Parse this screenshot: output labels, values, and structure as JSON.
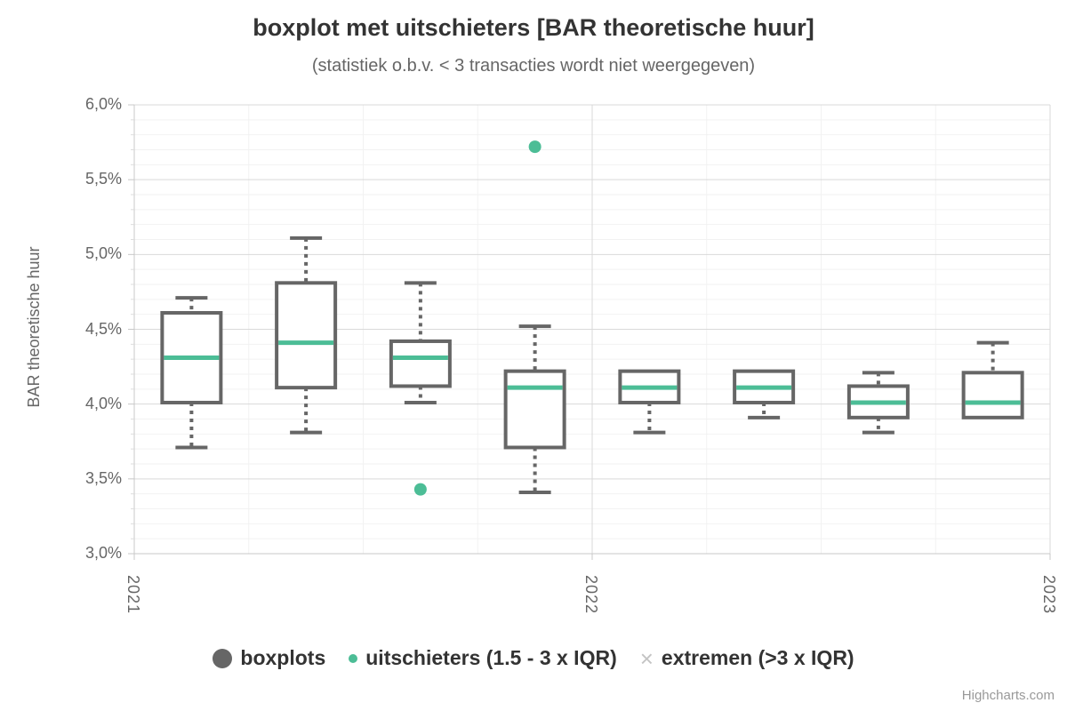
{
  "title": "boxplot met uitschieters [BAR theoretische huur]",
  "subtitle": "(statistiek o.b.v. < 3 transacties wordt niet weergegeven)",
  "credits": "Highcharts.com",
  "legend": {
    "items": [
      {
        "label": "boxplots",
        "marker": "large-circle",
        "color": "#666666"
      },
      {
        "label": "uitschieters (1.5 - 3 x IQR)",
        "marker": "small-dot",
        "color": "#4CBD96"
      },
      {
        "label": "extremen (>3 x IQR)",
        "marker": "cross",
        "marker_glyph": "×",
        "color": "#C4C4C4"
      }
    ]
  },
  "chart_data": {
    "type": "boxplot",
    "title": "boxplot met uitschieters [BAR theoretische huur]",
    "subtitle": "(statistiek o.b.v. < 3 transacties wordt niet weergegeven)",
    "ylabel": "BAR theoretische huur",
    "xlabel": "",
    "y_axis": {
      "min": 3.0,
      "max": 6.0,
      "major_step": 0.5,
      "minor_step": 0.1,
      "format": "percent-comma-decimal",
      "tick_labels": [
        "6,0%",
        "5,5%",
        "5,0%",
        "4,5%",
        "4,0%",
        "3,5%",
        "3,0%"
      ]
    },
    "x_axis": {
      "type": "datetime-years",
      "tick_labels": [
        "2021",
        "2022",
        "2023"
      ],
      "slots": 8,
      "slots_per_year": 4
    },
    "grid": {
      "major": true,
      "minor": true
    },
    "legend_position": "bottom-center",
    "series": [
      {
        "name": "boxplots",
        "type": "boxplot",
        "points": [
          {
            "slot": 0,
            "low": 3.71,
            "q1": 4.01,
            "median": 4.31,
            "q3": 4.61,
            "high": 4.71
          },
          {
            "slot": 1,
            "low": 3.81,
            "q1": 4.11,
            "median": 4.41,
            "q3": 4.81,
            "high": 5.11
          },
          {
            "slot": 2,
            "low": 4.01,
            "q1": 4.12,
            "median": 4.31,
            "q3": 4.42,
            "high": 4.81
          },
          {
            "slot": 3,
            "low": 3.41,
            "q1": 3.71,
            "median": 4.11,
            "q3": 4.22,
            "high": 4.52
          },
          {
            "slot": 4,
            "low": 3.81,
            "q1": 4.01,
            "median": 4.11,
            "q3": 4.22,
            "high": 4.22
          },
          {
            "slot": 5,
            "low": 3.91,
            "q1": 4.01,
            "median": 4.11,
            "q3": 4.22,
            "high": 4.22
          },
          {
            "slot": 6,
            "low": 3.81,
            "q1": 3.91,
            "median": 4.01,
            "q3": 4.12,
            "high": 4.21
          },
          {
            "slot": 7,
            "low": 3.91,
            "q1": 3.91,
            "median": 4.01,
            "q3": 4.21,
            "high": 4.41
          }
        ]
      },
      {
        "name": "uitschieters (1.5 - 3 x IQR)",
        "type": "scatter",
        "points": [
          {
            "slot": 2,
            "value": 3.43
          },
          {
            "slot": 3,
            "value": 5.72
          }
        ]
      },
      {
        "name": "extremen (>3 x IQR)",
        "type": "scatter",
        "points": []
      }
    ],
    "colors": {
      "box_border": "#666666",
      "box_fill": "#FFFFFF",
      "median": "#4CBD96",
      "outlier": "#4CBD96",
      "extreme": "#C4C4C4",
      "grid_major": "#D9D9D9",
      "grid_minor": "#F2F2F2",
      "axis_line": "#C8C8C8",
      "minor_tick": "#DDDDDD"
    }
  }
}
